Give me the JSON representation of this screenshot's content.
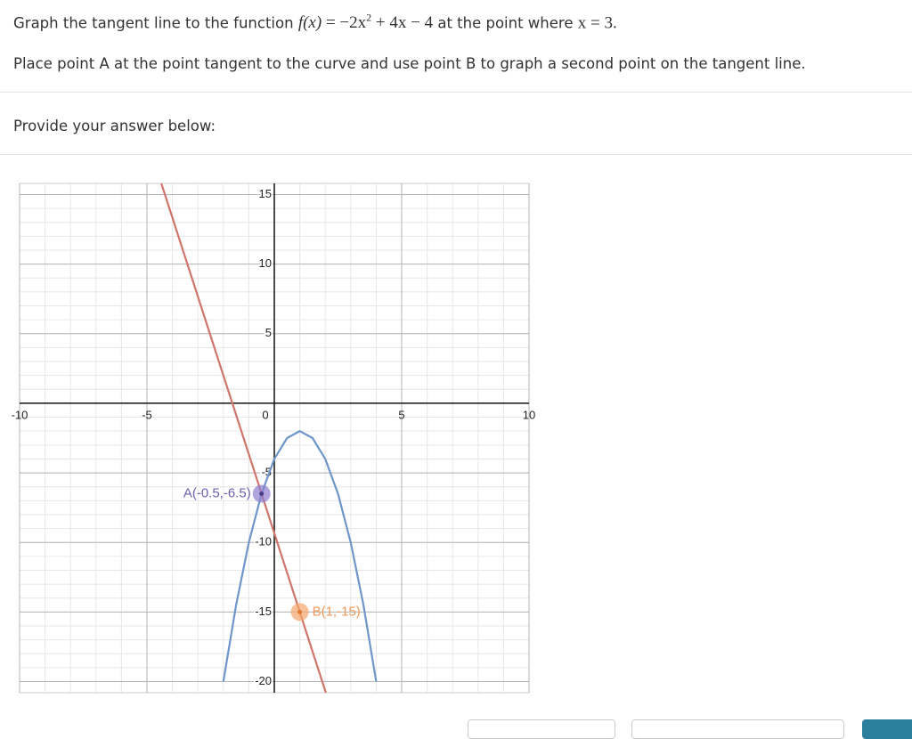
{
  "question": {
    "prefix": "Graph the tangent line to the function",
    "function_name": "f(x)",
    "function_body": "= −2x",
    "exponent": "2",
    "function_rest": "+ 4x − 4",
    "middle": "at the point where",
    "condition": "x = 3.",
    "instruction": "Place point A at the point tangent to the curve and use point B to graph a second point on the tangent line."
  },
  "answer_prompt": "Provide your answer below:",
  "chart_data": {
    "type": "line",
    "xlim": [
      -10,
      10
    ],
    "ylim": [
      -20.8,
      15.8
    ],
    "xticks": [
      -10,
      -5,
      0,
      5,
      10
    ],
    "yticks": [
      15,
      10,
      5,
      -5,
      -10,
      -15,
      -20
    ],
    "grid": true,
    "series": [
      {
        "color": "#6f96c8",
        "x": [
          -2,
          -1.5,
          -1,
          -0.5,
          0,
          0.5,
          1,
          1.5,
          2,
          2.5,
          3,
          3.5,
          4
        ],
        "values": [
          -20,
          -14.5,
          -10,
          -6.5,
          -4,
          -2.5,
          -2,
          -2.5,
          -4,
          -6.5,
          -10,
          -14.5,
          -20
        ]
      }
    ],
    "line_color": "#d0756b",
    "points": [
      {
        "label": "A(-0.5,-6.5)",
        "x": -0.5,
        "y": -6.5,
        "color": "#8e7fce",
        "label_color": "#6b62ad"
      },
      {
        "label": "B(1,-15)",
        "x": 1,
        "y": -15,
        "color": "#f5a56a",
        "label_color": "#f0995a"
      }
    ]
  }
}
